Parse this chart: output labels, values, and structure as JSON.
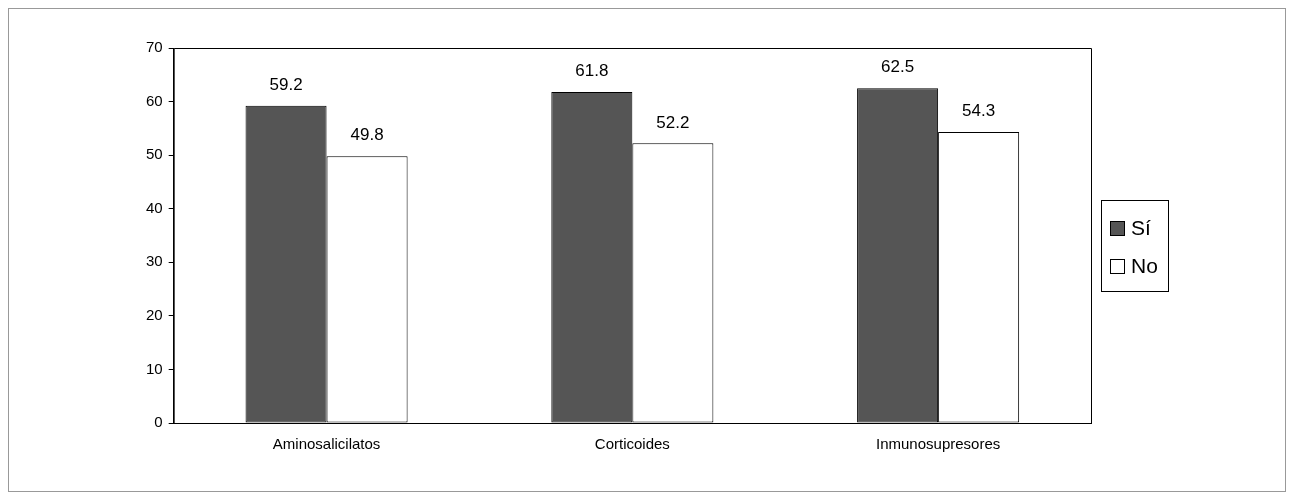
{
  "chart_data": {
    "type": "bar",
    "categories": [
      "Aminosalicilatos",
      "Corticoides",
      "Inmunosupresores"
    ],
    "series": [
      {
        "name": "Sí",
        "color": "#555555",
        "values": [
          59.2,
          61.8,
          62.5
        ]
      },
      {
        "name": "No",
        "color": "#ffffff",
        "values": [
          49.8,
          52.2,
          54.3
        ]
      }
    ],
    "ylim": [
      0,
      70
    ],
    "yticks": [
      0,
      10,
      20,
      30,
      40,
      50,
      60,
      70
    ],
    "grid": false,
    "legend": "right",
    "data_labels": true
  }
}
